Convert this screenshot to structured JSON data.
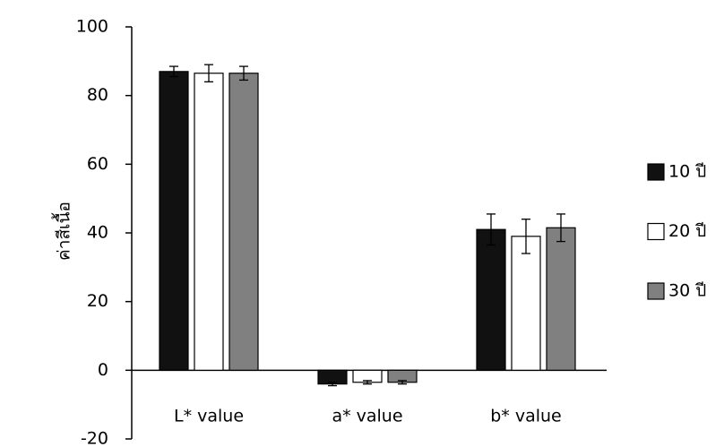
{
  "chart_data": {
    "type": "bar",
    "y_label": "ค่าสีเนื้อ",
    "categories": [
      "L* value",
      "a* value",
      "b* value"
    ],
    "series": [
      {
        "name": "10 ปี",
        "color": "#111111",
        "values": [
          87,
          -4,
          41
        ],
        "errors": [
          1.5,
          0.5,
          4.5
        ]
      },
      {
        "name": "20 ปี",
        "color": "#ffffff",
        "values": [
          86.5,
          -3.5,
          39
        ],
        "errors": [
          2.5,
          0.5,
          5
        ]
      },
      {
        "name": "30 ปี",
        "color": "#808080",
        "values": [
          86.5,
          -3.5,
          41.5
        ],
        "errors": [
          2,
          0.5,
          4
        ]
      }
    ],
    "ylim": [
      -20,
      100
    ],
    "yticks": [
      -20,
      0,
      20,
      40,
      60,
      80,
      100
    ],
    "legend": "right"
  }
}
